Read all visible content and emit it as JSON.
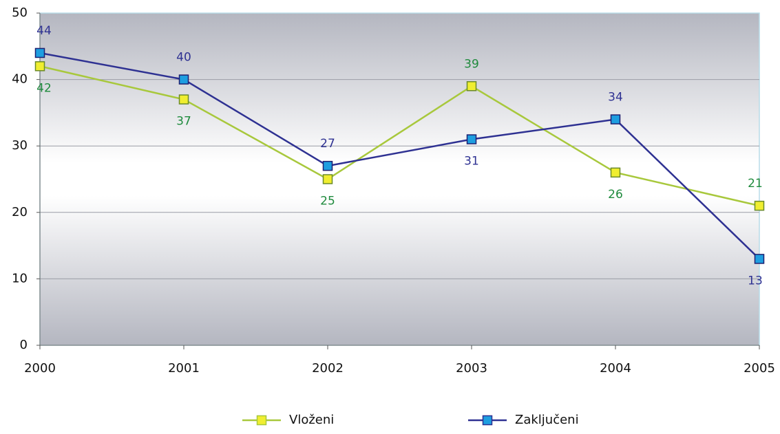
{
  "chart_data": {
    "type": "line",
    "x": [
      2000,
      2001,
      2002,
      2003,
      2004,
      2005
    ],
    "xlim": [
      2000,
      2005
    ],
    "xticks": [
      2000,
      2001,
      2002,
      2003,
      2004,
      2005
    ],
    "ylim": [
      0,
      50
    ],
    "yticks": [
      0,
      10,
      20,
      30,
      40,
      50
    ],
    "grid": true,
    "legend": "bottom",
    "series": [
      {
        "name": "Vloženi",
        "color": "#a8c83c",
        "marker_color": "#f0ee30",
        "label_color": "#1e8a3c",
        "values": [
          42,
          37,
          25,
          39,
          26,
          21
        ]
      },
      {
        "name": "Zaključeni",
        "color": "#2e3192",
        "marker_color": "#1e9ee0",
        "label_color": "#2e3192",
        "values": [
          44,
          40,
          27,
          31,
          34,
          13
        ]
      }
    ]
  }
}
